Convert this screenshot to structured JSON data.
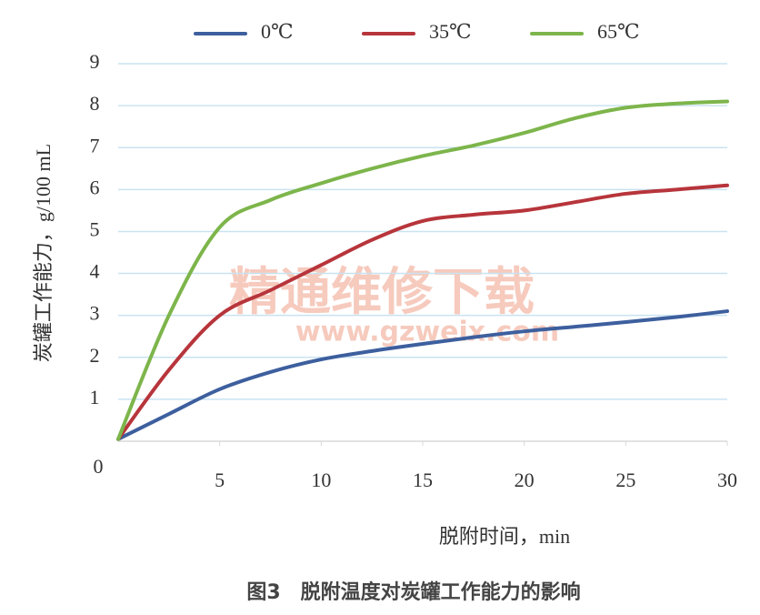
{
  "chart_data": {
    "type": "line",
    "caption": "图3　脱附温度对炭罐工作能力的影响",
    "xlabel": "脱附时间，min",
    "ylabel": "炭罐工作能力，g/100 mL",
    "watermark": "精通维修下载",
    "watermark_url": "www.gzweix.com",
    "x": [
      0,
      2.5,
      5,
      7.5,
      10,
      12.5,
      15,
      17.5,
      20,
      22.5,
      25,
      27.5,
      30
    ],
    "series": [
      {
        "name": "0℃",
        "color": "#3d5f9e",
        "values": [
          0.05,
          0.65,
          1.24,
          1.65,
          1.95,
          2.15,
          2.32,
          2.48,
          2.62,
          2.73,
          2.84,
          2.96,
          3.1
        ]
      },
      {
        "name": "35℃",
        "color": "#b7353b",
        "values": [
          0.05,
          1.7,
          3.0,
          3.6,
          4.2,
          4.8,
          5.25,
          5.4,
          5.5,
          5.7,
          5.9,
          6.0,
          6.1
        ]
      },
      {
        "name": "65℃",
        "color": "#7db54b",
        "values": [
          0.05,
          3.0,
          5.1,
          5.75,
          6.15,
          6.5,
          6.8,
          7.05,
          7.35,
          7.7,
          7.95,
          8.05,
          8.1
        ]
      }
    ],
    "xlim": [
      0,
      30
    ],
    "xticks": [
      5,
      10,
      15,
      20,
      25,
      30
    ],
    "ylim": [
      0,
      9
    ],
    "yticks": [
      0,
      1,
      2,
      3,
      4,
      5,
      6,
      7,
      8,
      9
    ],
    "grid": true,
    "legend": "top"
  }
}
